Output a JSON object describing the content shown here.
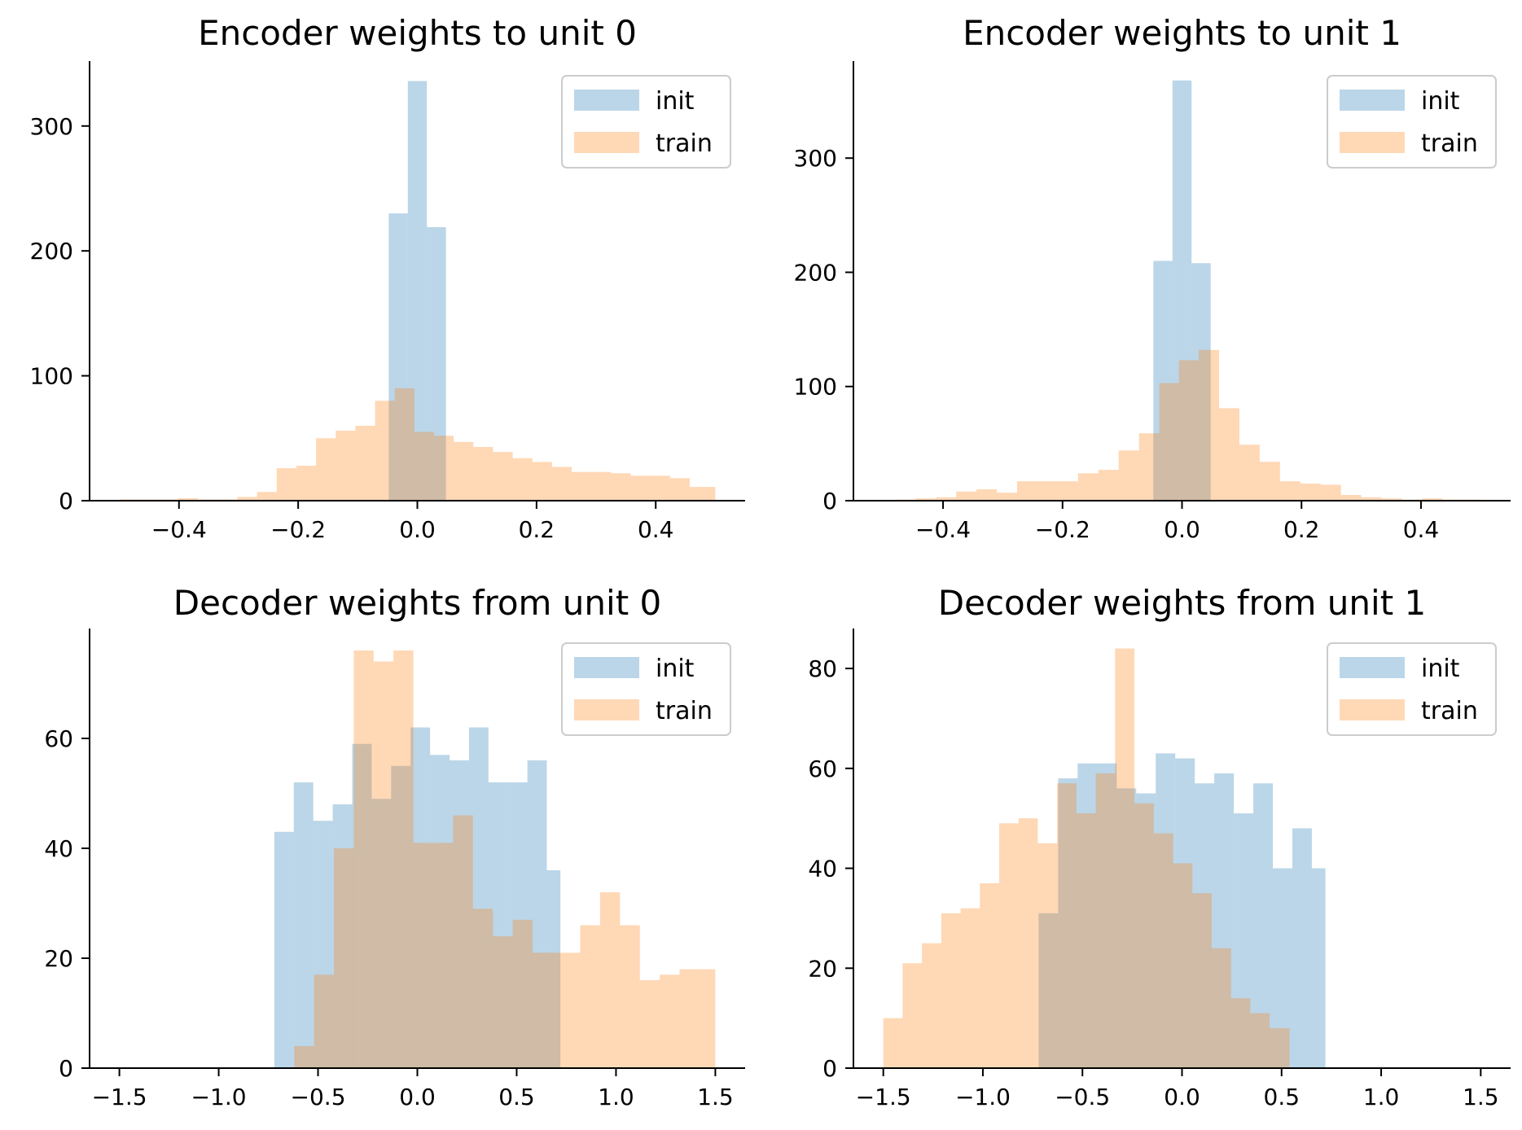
{
  "colors": {
    "init": "#1f77b4",
    "train": "#ff7f0e",
    "alpha": 0.3
  },
  "chart_data": [
    {
      "type": "bar",
      "title": "Encoder weights to unit 0",
      "xlim": [
        -0.55,
        0.55
      ],
      "ylim": [
        0,
        352
      ],
      "xticks": [
        -0.4,
        -0.2,
        0.0,
        0.2,
        0.4
      ],
      "xtick_labels": [
        "−0.4",
        "−0.2",
        "0.0",
        "0.2",
        "0.4"
      ],
      "yticks": [
        0,
        100,
        200,
        300
      ],
      "ytick_labels": [
        "0",
        "100",
        "200",
        "300"
      ],
      "legend": {
        "position": "top-right",
        "entries": [
          "init",
          "train"
        ]
      },
      "series": [
        {
          "name": "init",
          "bins": [
            -0.048,
            -0.016,
            0.016,
            0.048
          ],
          "counts": [
            230,
            336,
            219
          ]
        },
        {
          "name": "train",
          "bins": [
            -0.5,
            -0.467,
            -0.434,
            -0.401,
            -0.368,
            -0.335,
            -0.302,
            -0.269,
            -0.236,
            -0.203,
            -0.17,
            -0.137,
            -0.104,
            -0.071,
            -0.038,
            -0.005,
            0.028,
            0.061,
            0.094,
            0.127,
            0.16,
            0.193,
            0.226,
            0.259,
            0.292,
            0.325,
            0.358,
            0.391,
            0.424,
            0.457,
            0.5
          ],
          "counts": [
            1,
            1,
            1,
            2,
            1,
            1,
            3,
            7,
            26,
            28,
            50,
            56,
            60,
            80,
            90,
            55,
            52,
            47,
            43,
            39,
            34,
            31,
            27,
            23,
            23,
            22,
            20,
            20,
            18,
            11
          ]
        }
      ]
    },
    {
      "type": "bar",
      "title": "Encoder weights to unit 1",
      "xlim": [
        -0.55,
        0.55
      ],
      "ylim": [
        0,
        385
      ],
      "xticks": [
        -0.4,
        -0.2,
        0.0,
        0.2,
        0.4
      ],
      "xtick_labels": [
        "−0.4",
        "−0.2",
        "0.0",
        "0.2",
        "0.4"
      ],
      "yticks": [
        0,
        100,
        200,
        300
      ],
      "ytick_labels": [
        "0",
        "100",
        "200",
        "300"
      ],
      "legend": {
        "position": "top-right",
        "entries": [
          "init",
          "train"
        ]
      },
      "series": [
        {
          "name": "init",
          "bins": [
            -0.048,
            -0.016,
            0.016,
            0.048
          ],
          "counts": [
            210,
            368,
            208
          ]
        },
        {
          "name": "train",
          "bins": [
            -0.48,
            -0.446,
            -0.412,
            -0.378,
            -0.344,
            -0.31,
            -0.276,
            -0.242,
            -0.208,
            -0.174,
            -0.14,
            -0.106,
            -0.072,
            -0.038,
            -0.005,
            0.028,
            0.062,
            0.096,
            0.13,
            0.164,
            0.198,
            0.232,
            0.266,
            0.3,
            0.334,
            0.368,
            0.402,
            0.436,
            0.47,
            0.5
          ],
          "counts": [
            1,
            2,
            3,
            8,
            10,
            7,
            17,
            17,
            17,
            24,
            27,
            44,
            59,
            103,
            123,
            132,
            81,
            49,
            34,
            17,
            15,
            14,
            5,
            3,
            2,
            1,
            2,
            1,
            1
          ]
        }
      ]
    },
    {
      "type": "bar",
      "title": "Decoder weights from unit 0",
      "xlim": [
        -1.65,
        1.65
      ],
      "ylim": [
        0,
        80
      ],
      "xticks": [
        -1.5,
        -1.0,
        -0.5,
        0.0,
        0.5,
        1.0,
        1.5
      ],
      "xtick_labels": [
        "−1.5",
        "−1.0",
        "−0.5",
        "0.0",
        "0.5",
        "1.0",
        "1.5"
      ],
      "yticks": [
        0,
        20,
        40,
        60
      ],
      "ytick_labels": [
        "0",
        "20",
        "40",
        "60"
      ],
      "legend": {
        "position": "top-right",
        "entries": [
          "init",
          "train"
        ]
      },
      "series": [
        {
          "name": "init",
          "bins": [
            -0.72,
            -0.622,
            -0.524,
            -0.426,
            -0.328,
            -0.23,
            -0.132,
            -0.034,
            0.064,
            0.162,
            0.26,
            0.358,
            0.456,
            0.554,
            0.652,
            0.72
          ],
          "counts": [
            43,
            52,
            45,
            48,
            59,
            49,
            55,
            62,
            57,
            56,
            62,
            52,
            52,
            56,
            36
          ]
        },
        {
          "name": "train",
          "bins": [
            -0.62,
            -0.52,
            -0.42,
            -0.32,
            -0.22,
            -0.12,
            -0.02,
            0.08,
            0.18,
            0.28,
            0.38,
            0.48,
            0.58,
            0.72,
            0.82,
            0.92,
            1.02,
            1.12,
            1.22,
            1.32,
            1.42,
            1.5
          ],
          "counts": [
            4,
            17,
            40,
            76,
            74,
            76,
            41,
            41,
            46,
            29,
            24,
            27,
            21,
            21,
            26,
            32,
            26,
            16,
            17,
            18,
            18
          ]
        }
      ]
    },
    {
      "type": "bar",
      "title": "Decoder weights from unit 1",
      "xlim": [
        -1.65,
        1.65
      ],
      "ylim": [
        0,
        88
      ],
      "xticks": [
        -1.5,
        -1.0,
        -0.5,
        0.0,
        0.5,
        1.0,
        1.5
      ],
      "xtick_labels": [
        "−1.5",
        "−1.0",
        "−0.5",
        "0.0",
        "0.5",
        "1.0",
        "1.5"
      ],
      "yticks": [
        0,
        20,
        40,
        60,
        80
      ],
      "ytick_labels": [
        "0",
        "20",
        "40",
        "60",
        "80"
      ],
      "legend": {
        "position": "top-right",
        "entries": [
          "init",
          "train"
        ]
      },
      "series": [
        {
          "name": "init",
          "bins": [
            -0.72,
            -0.622,
            -0.524,
            -0.426,
            -0.328,
            -0.23,
            -0.132,
            -0.034,
            0.064,
            0.162,
            0.26,
            0.358,
            0.456,
            0.554,
            0.652,
            0.72
          ],
          "counts": [
            31,
            58,
            61,
            61,
            56,
            55,
            63,
            62,
            57,
            59,
            51,
            57,
            40,
            48,
            40
          ]
        },
        {
          "name": "train",
          "bins": [
            -1.5,
            -1.403,
            -1.306,
            -1.209,
            -1.112,
            -1.015,
            -0.918,
            -0.821,
            -0.724,
            -0.627,
            -0.53,
            -0.433,
            -0.336,
            -0.239,
            -0.142,
            -0.045,
            0.052,
            0.149,
            0.246,
            0.343,
            0.44,
            0.54
          ],
          "counts": [
            10,
            21,
            25,
            31,
            32,
            37,
            49,
            50,
            45,
            57,
            51,
            59,
            84,
            53,
            47,
            41,
            35,
            24,
            14,
            11,
            8
          ]
        }
      ]
    }
  ]
}
